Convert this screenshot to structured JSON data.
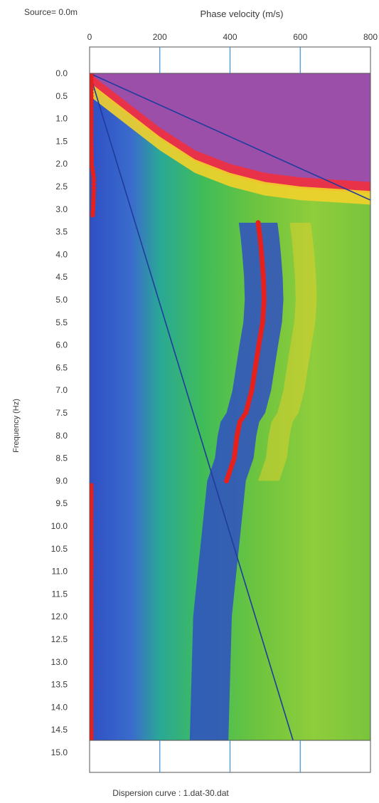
{
  "header": {
    "source_label": "Source= 0.0m"
  },
  "footer": {
    "caption": "Dispersion curve : 1.dat-30.dat"
  },
  "chart_data": {
    "type": "heatmap",
    "title": "",
    "xlabel": "Phase velocity (m/s)",
    "ylabel": "Frequency (Hz)",
    "xlim": [
      0,
      800
    ],
    "ylim": [
      0.0,
      15.0
    ],
    "y_inverted": true,
    "x_ticks": [
      "0",
      "200",
      "400",
      "600",
      "800"
    ],
    "y_ticks": [
      "0.0",
      "0.5",
      "1.0",
      "1.5",
      "2.0",
      "2.5",
      "3.0",
      "3.5",
      "4.0",
      "4.5",
      "5.0",
      "5.5",
      "6.0",
      "6.5",
      "7.0",
      "7.5",
      "8.0",
      "8.5",
      "9.0",
      "9.5",
      "10.0",
      "10.5",
      "11.0",
      "11.5",
      "12.0",
      "12.5",
      "13.0",
      "13.5",
      "14.0",
      "14.5",
      "15.0"
    ],
    "grid": true,
    "colors": {
      "background_field": "#7fc73a",
      "low_amplitude": "#2f4fc4",
      "high_amplitude_band": "#f2d12a",
      "peak": "#e8324a",
      "aliased_region": "#9b4fa8",
      "picked_points": "#e8201c",
      "limit_lines": "#1f3c9c",
      "gridlines": "#3a8fd8"
    },
    "picked_dispersion_curve": [
      {
        "f": 3.3,
        "v": 480
      },
      {
        "f": 3.6,
        "v": 485
      },
      {
        "f": 4.0,
        "v": 490
      },
      {
        "f": 4.5,
        "v": 495
      },
      {
        "f": 5.0,
        "v": 497
      },
      {
        "f": 5.5,
        "v": 493
      },
      {
        "f": 6.0,
        "v": 482
      },
      {
        "f": 6.5,
        "v": 472
      },
      {
        "f": 7.0,
        "v": 462
      },
      {
        "f": 7.5,
        "v": 445
      },
      {
        "f": 7.7,
        "v": 428
      },
      {
        "f": 8.0,
        "v": 420
      },
      {
        "f": 8.5,
        "v": 412
      },
      {
        "f": 9.0,
        "v": 390
      }
    ],
    "low_freq_edge_points": [
      {
        "f": 0.0,
        "v": 5
      },
      {
        "f": 0.5,
        "v": 5
      },
      {
        "f": 1.0,
        "v": 5
      },
      {
        "f": 1.5,
        "v": 5
      },
      {
        "f": 2.0,
        "v": 6
      },
      {
        "f": 2.3,
        "v": 12
      },
      {
        "f": 2.6,
        "v": 12
      },
      {
        "f": 3.0,
        "v": 10
      },
      {
        "f": 3.2,
        "v": 8
      }
    ],
    "high_freq_edge_points": {
      "f_start": 9.1,
      "f_end": 14.8,
      "v": 5
    },
    "limit_lines": [
      {
        "from": {
          "v": 0,
          "f": 0.0
        },
        "to": {
          "v": 800,
          "f": 2.8
        }
      },
      {
        "from": {
          "v": 0,
          "f": 0.0
        },
        "to": {
          "v": 590,
          "f": 15.0
        }
      }
    ],
    "aliased_boundary": [
      {
        "v": 0,
        "f": 0.0
      },
      {
        "v": 100,
        "f": 0.6
      },
      {
        "v": 200,
        "f": 1.2
      },
      {
        "v": 300,
        "f": 1.7
      },
      {
        "v": 400,
        "f": 2.0
      },
      {
        "v": 500,
        "f": 2.2
      },
      {
        "v": 600,
        "f": 2.3
      },
      {
        "v": 700,
        "f": 2.35
      },
      {
        "v": 800,
        "f": 2.4
      }
    ]
  }
}
